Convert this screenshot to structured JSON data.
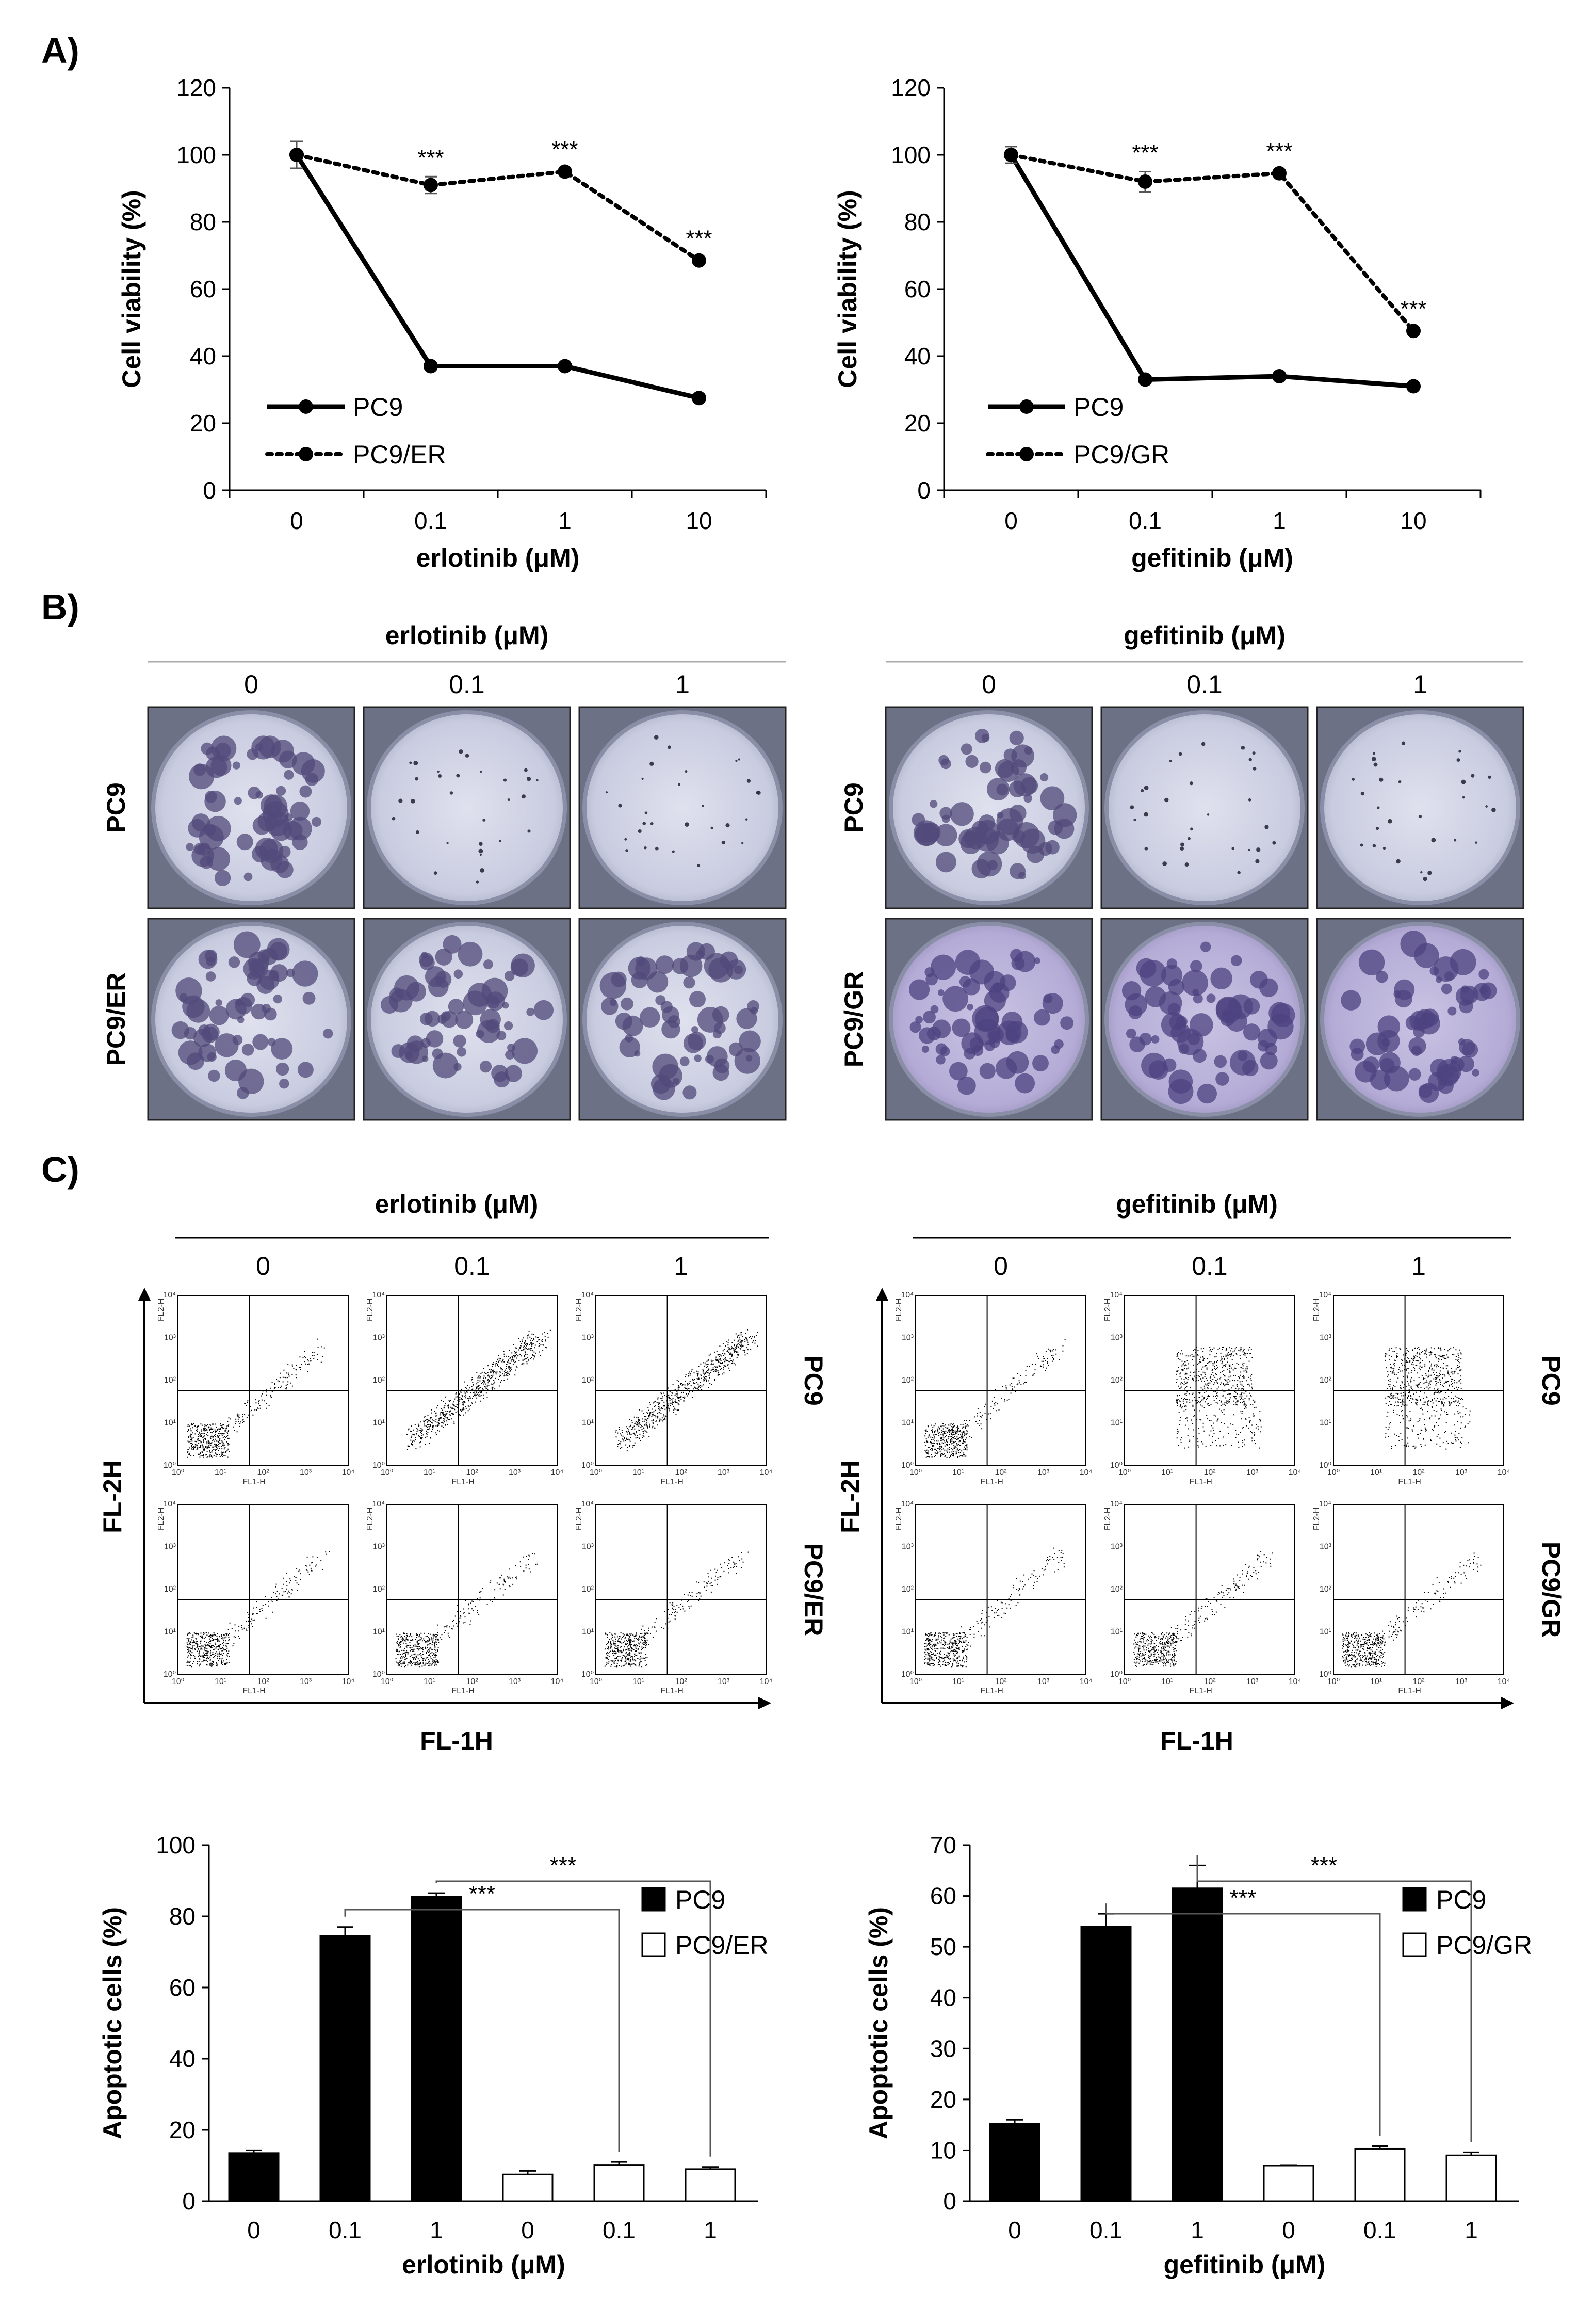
{
  "panels": {
    "A": "A)",
    "B": "B)",
    "C": "C)"
  },
  "chart_data": [
    {
      "type": "line",
      "id": "viability-erlotinib",
      "categories": [
        "0",
        "0.1",
        "1",
        "10"
      ],
      "xlabel": "erlotinib (μM)",
      "ylabel": "Cell viability (%)",
      "ylim": [
        0,
        120
      ],
      "yticks": [
        "0",
        "20",
        "40",
        "60",
        "80",
        "100",
        "120"
      ],
      "series": [
        {
          "name": "PC9",
          "style": "solid",
          "values": [
            100,
            37,
            37,
            27.5
          ],
          "errors": [
            4,
            0.8,
            0.8,
            0.8
          ]
        },
        {
          "name": "PC9/ER",
          "style": "dotted",
          "values": [
            100,
            91,
            95,
            68.5
          ],
          "errors": [
            4,
            2.5,
            1,
            1
          ]
        }
      ],
      "annotations": [
        "",
        "***",
        "***",
        "***"
      ],
      "legend": "bottom-left"
    },
    {
      "type": "line",
      "id": "viability-gefitinib",
      "categories": [
        "0",
        "0.1",
        "1",
        "10"
      ],
      "xlabel": "gefitinib (μM)",
      "ylabel": "Cell viability (%)",
      "ylim": [
        0,
        120
      ],
      "yticks": [
        "0",
        "20",
        "40",
        "60",
        "80",
        "100",
        "120"
      ],
      "series": [
        {
          "name": "PC9",
          "style": "solid",
          "values": [
            100,
            33,
            34,
            31
          ],
          "errors": [
            2.5,
            0.8,
            0.8,
            0.8
          ]
        },
        {
          "name": "PC9/GR",
          "style": "dotted",
          "values": [
            100,
            92,
            94.5,
            47.5
          ],
          "errors": [
            2.5,
            3,
            1,
            1
          ]
        }
      ],
      "annotations": [
        "",
        "***",
        "***",
        "***"
      ],
      "legend": "bottom-left"
    },
    {
      "type": "bar",
      "id": "apoptosis-erlotinib",
      "categories": [
        "0",
        "0.1",
        "1",
        "0",
        "0.1",
        "1"
      ],
      "xlabel": "erlotinib (μM)",
      "ylabel": "Apoptotic cells (%)",
      "ylim": [
        0,
        100
      ],
      "yticks": [
        "0",
        "20",
        "40",
        "60",
        "80",
        "100"
      ],
      "values": [
        13.5,
        74.5,
        85.5,
        7.5,
        10.2,
        9
      ],
      "errors": [
        0.8,
        2.5,
        1,
        1,
        0.8,
        0.6
      ],
      "groups": [
        "PC9",
        "PC9",
        "PC9",
        "PC9/ER",
        "PC9/ER",
        "PC9/ER"
      ],
      "legend_entries": [
        "PC9",
        "PC9/ER"
      ],
      "significance": [
        "***",
        "***"
      ],
      "legend": "top-right"
    },
    {
      "type": "bar",
      "id": "apoptosis-gefitinib",
      "categories": [
        "0",
        "0.1",
        "1",
        "0",
        "0.1",
        "1"
      ],
      "xlabel": "gefitinib (μM)",
      "ylabel": "Apoptotic cells (%)",
      "ylim": [
        0,
        70
      ],
      "yticks": [
        "0",
        "10",
        "20",
        "30",
        "40",
        "50",
        "60",
        "70"
      ],
      "values": [
        15.2,
        54,
        61.5,
        7,
        10.3,
        9
      ],
      "errors": [
        0.8,
        2.5,
        4.5,
        0.1,
        0.5,
        0.6
      ],
      "groups": [
        "PC9",
        "PC9",
        "PC9",
        "PC9/GR",
        "PC9/GR",
        "PC9/GR"
      ],
      "legend_entries": [
        "PC9",
        "PC9/GR"
      ],
      "significance": [
        "***",
        "***"
      ],
      "legend": "top-right"
    }
  ],
  "colony": {
    "erlotinib": {
      "header": "erlotinib (μM)",
      "cols": [
        "0",
        "0.1",
        "1"
      ],
      "rows": [
        "PC9",
        "PC9/ER"
      ]
    },
    "gefitinib": {
      "header": "gefitinib (μM)",
      "cols": [
        "0",
        "0.1",
        "1"
      ],
      "rows": [
        "PC9",
        "PC9/GR"
      ]
    }
  },
  "flow": {
    "erlotinib": {
      "header": "erlotinib (μM)",
      "cols": [
        "0",
        "0.1",
        "1"
      ],
      "rows": [
        "PC9",
        "PC9/ER"
      ],
      "xaxis": "FL-1H",
      "yaxis": "FL-2H"
    },
    "gefitinib": {
      "header": "gefitinib (μM)",
      "cols": [
        "0",
        "0.1",
        "1"
      ],
      "rows": [
        "PC9",
        "PC9/GR"
      ],
      "xaxis": "FL-1H",
      "yaxis": "FL-2H"
    },
    "ticks": [
      "10⁰",
      "10¹",
      "10²",
      "10³",
      "10⁴"
    ],
    "mini_xlabel": "FL1-H",
    "mini_ylabel": "FL2-H"
  }
}
